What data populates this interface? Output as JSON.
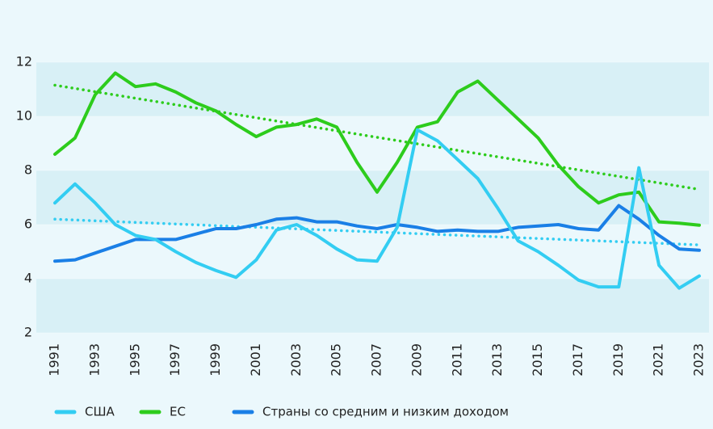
{
  "chart_data": {
    "type": "line",
    "categories": [
      "1991",
      null,
      "1993",
      null,
      "1995",
      null,
      "1997",
      null,
      "1999",
      null,
      "2001",
      null,
      "2003",
      null,
      "2005",
      null,
      "2007",
      null,
      "2009",
      null,
      "2011",
      null,
      "2013",
      null,
      "2015",
      null,
      "2017",
      null,
      "2019",
      null,
      "2021",
      null,
      "2023"
    ],
    "series": [
      {
        "name": "США",
        "color": "#33cdf2",
        "values": [
          6.8,
          7.5,
          6.8,
          6.0,
          5.6,
          5.45,
          5.0,
          4.6,
          4.3,
          4.05,
          4.7,
          5.8,
          6.0,
          5.6,
          5.1,
          4.7,
          4.65,
          5.9,
          9.5,
          9.1,
          8.4,
          7.7,
          6.6,
          5.4,
          5.0,
          4.5,
          3.95,
          3.7,
          3.7,
          8.1,
          4.5,
          3.65,
          4.1
        ],
        "trend": [
          6.2,
          5.25
        ]
      },
      {
        "name": "ЕС",
        "color": "#2dcc1c",
        "values": [
          8.6,
          9.2,
          10.8,
          11.6,
          11.1,
          11.2,
          10.9,
          10.5,
          10.2,
          9.7,
          9.25,
          9.6,
          9.7,
          9.9,
          9.6,
          8.3,
          7.2,
          8.3,
          9.6,
          9.8,
          10.9,
          11.3,
          10.6,
          9.9,
          9.2,
          8.2,
          7.4,
          6.8,
          7.1,
          7.2,
          6.1,
          6.05,
          5.98
        ],
        "trend": [
          11.15,
          7.3
        ]
      },
      {
        "name": "Страны со средним и низким доходом",
        "color": "#1a7fe6",
        "values": [
          4.65,
          4.7,
          4.95,
          5.2,
          5.45,
          5.45,
          5.45,
          5.65,
          5.85,
          5.85,
          6.0,
          6.2,
          6.25,
          6.1,
          6.1,
          5.95,
          5.85,
          6.0,
          5.9,
          5.75,
          5.8,
          5.75,
          5.75,
          5.9,
          5.95,
          6.0,
          5.85,
          5.8,
          6.7,
          6.2,
          5.6,
          5.1,
          5.05
        ]
      }
    ],
    "ylim": [
      2,
      12
    ],
    "yticks": [
      2,
      4,
      6,
      8,
      10,
      12
    ],
    "bands": true
  }
}
